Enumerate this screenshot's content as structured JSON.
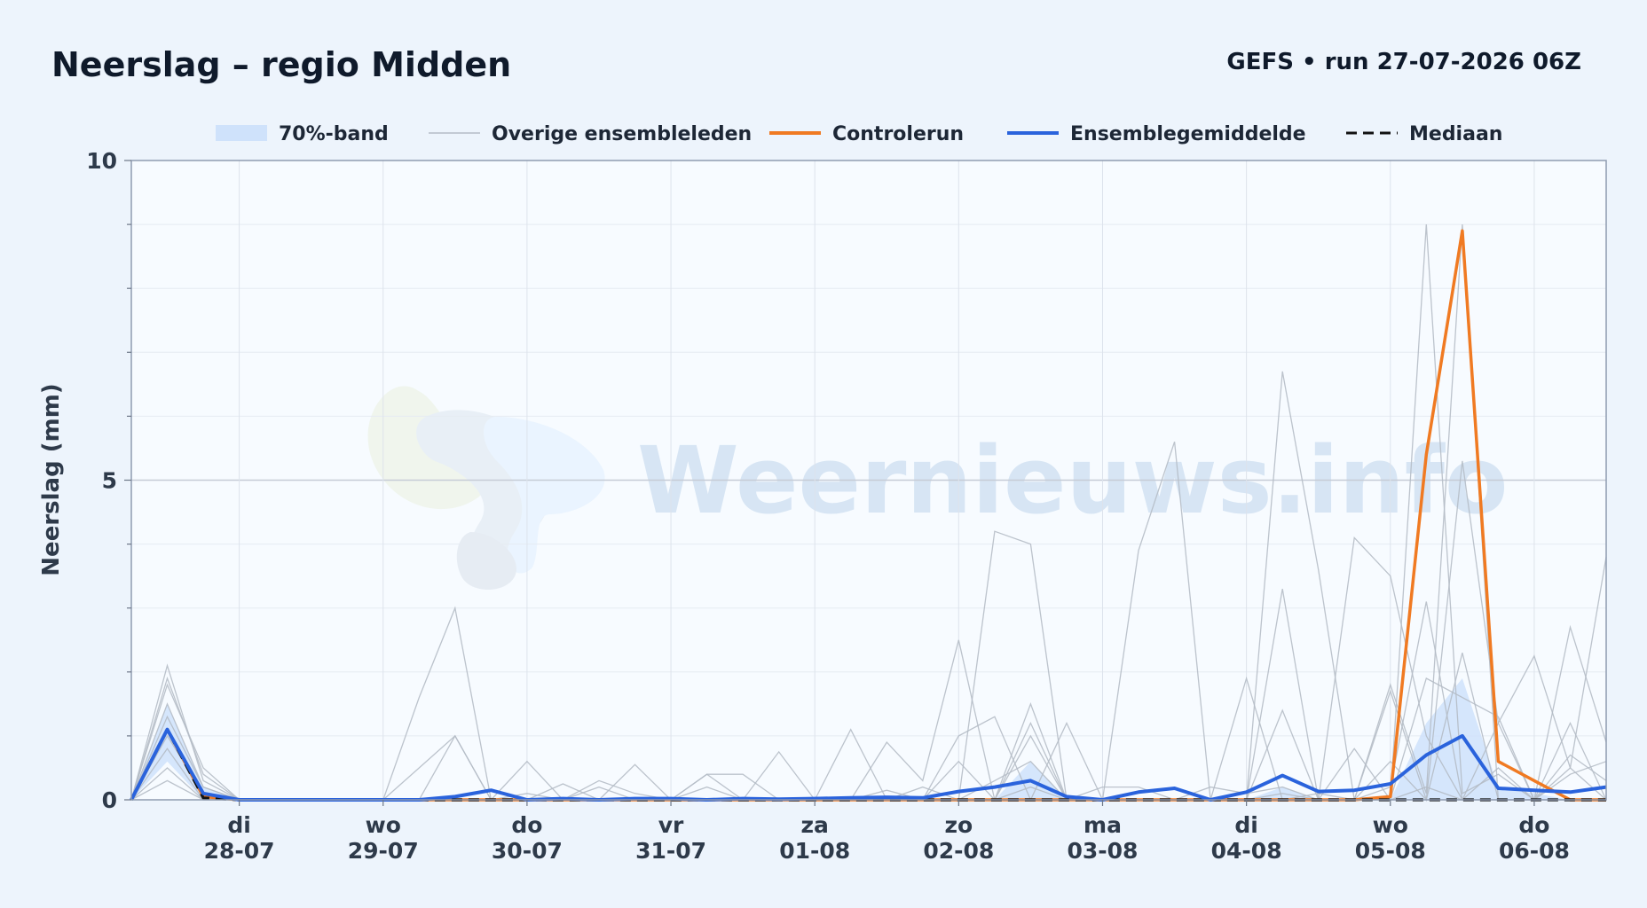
{
  "header": {
    "title": "Neerslag – regio Midden",
    "run_info": "GEFS • run 27-07-2026 06Z"
  },
  "watermark": {
    "text": "Weernieuws.info"
  },
  "legend": {
    "items": [
      {
        "key": "band",
        "label": "70%-band",
        "color": "#cfe2fb"
      },
      {
        "key": "members",
        "label": "Overige ensembleleden",
        "color": "#b5bcc7"
      },
      {
        "key": "control",
        "label": "Controlerun",
        "color": "#f07a22"
      },
      {
        "key": "mean",
        "label": "Ensemblegemiddelde",
        "color": "#2a63dc"
      },
      {
        "key": "median",
        "label": "Mediaan",
        "color": "#111111"
      }
    ]
  },
  "chart_data": {
    "type": "line",
    "ylabel": "Neerslag (mm)",
    "xlabel": "",
    "ylim": [
      0,
      10
    ],
    "yticks": [
      0,
      5,
      10
    ],
    "x_start": "2026-07-27T06:00Z",
    "x_end": "2026-08-06T12:00Z",
    "x_step_hours": 6,
    "x_ticks": [
      {
        "day": "di",
        "date": "28-07",
        "at": "2026-07-28T00:00Z"
      },
      {
        "day": "wo",
        "date": "29-07",
        "at": "2026-07-29T00:00Z"
      },
      {
        "day": "do",
        "date": "30-07",
        "at": "2026-07-30T00:00Z"
      },
      {
        "day": "vr",
        "date": "31-07",
        "at": "2026-07-31T00:00Z"
      },
      {
        "day": "za",
        "date": "01-08",
        "at": "2026-08-01T00:00Z"
      },
      {
        "day": "zo",
        "date": "02-08",
        "at": "2026-08-02T00:00Z"
      },
      {
        "day": "ma",
        "date": "03-08",
        "at": "2026-08-03T00:00Z"
      },
      {
        "day": "di",
        "date": "04-08",
        "at": "2026-08-04T00:00Z"
      },
      {
        "day": "wo",
        "date": "05-08",
        "at": "2026-08-05T00:00Z"
      },
      {
        "day": "do",
        "date": "06-08",
        "at": "2026-08-06T00:00Z"
      }
    ],
    "mean": [
      0,
      1.1,
      0.1,
      0,
      0,
      0,
      0,
      0,
      0,
      0.05,
      0.15,
      0,
      0.02,
      0,
      0.02,
      0.02,
      0,
      0.02,
      0.01,
      0.02,
      0.03,
      0.04,
      0.03,
      0.13,
      0.2,
      0.3,
      0.05,
      0,
      0.12,
      0.18,
      0,
      0.12,
      0.38,
      0.13,
      0.15,
      0.25,
      0.7,
      1.0,
      0.18,
      0.15,
      0.12,
      0.2
    ],
    "control": [
      0,
      1.1,
      0.05,
      0,
      0,
      0,
      0,
      0,
      0,
      0,
      0,
      0,
      0,
      0,
      0,
      0,
      0,
      0,
      0,
      0,
      0,
      0,
      0,
      0,
      0,
      0,
      0,
      0,
      0,
      0,
      0,
      0,
      0,
      0,
      0,
      0.05,
      5.4,
      8.9,
      0.6,
      0.3,
      0,
      0
    ],
    "median": [
      0,
      1.1,
      0.03,
      0,
      0,
      0,
      0,
      0,
      0,
      0,
      0,
      0,
      0,
      0,
      0,
      0,
      0,
      0,
      0,
      0,
      0,
      0,
      0,
      0,
      0,
      0,
      0,
      0,
      0,
      0,
      0,
      0,
      0,
      0,
      0,
      0,
      0,
      0,
      0,
      0,
      0,
      0
    ],
    "band_upper": [
      0,
      1.5,
      0.2,
      0,
      0,
      0,
      0,
      0,
      0,
      0,
      0,
      0,
      0,
      0,
      0,
      0,
      0,
      0,
      0,
      0,
      0,
      0,
      0,
      0,
      0,
      0.6,
      0,
      0,
      0,
      0,
      0,
      0,
      0.2,
      0,
      0,
      0,
      1.2,
      1.9,
      0.2,
      0.1,
      0,
      0
    ],
    "band_lower": [
      0,
      0.6,
      0,
      0,
      0,
      0,
      0,
      0,
      0,
      0,
      0,
      0,
      0,
      0,
      0,
      0,
      0,
      0,
      0,
      0,
      0,
      0,
      0,
      0,
      0,
      0,
      0,
      0,
      0,
      0,
      0,
      0,
      0,
      0,
      0,
      0,
      0,
      0,
      0,
      0,
      0,
      0
    ],
    "members": [
      [
        0,
        1.9,
        0.4,
        0,
        0,
        0,
        0,
        0,
        1.6,
        3.0,
        0,
        0,
        0,
        0,
        0,
        0,
        0,
        0,
        0,
        0,
        0,
        0,
        0,
        0,
        4.2,
        4.0,
        0,
        0,
        3.9,
        5.6,
        0,
        0,
        6.7,
        3.6,
        0,
        0,
        9.0,
        0.1,
        0.4,
        0,
        2.7,
        0.9
      ],
      [
        0,
        2.1,
        0.3,
        0,
        0,
        0,
        0,
        0,
        0,
        1.0,
        0,
        0.6,
        0,
        0,
        0.55,
        0,
        0,
        0,
        0,
        0,
        1.1,
        0,
        0,
        0,
        0,
        1.5,
        0,
        0,
        0,
        0,
        0,
        0,
        3.3,
        0,
        0,
        1.8,
        0.1,
        9.0,
        0,
        0,
        0,
        0
      ],
      [
        0,
        1.8,
        0.5,
        0,
        0,
        0,
        0,
        0,
        0.5,
        1.0,
        0,
        0,
        0.25,
        0,
        0,
        0,
        0.4,
        0,
        0.75,
        0,
        0,
        0.9,
        0.3,
        2.5,
        0,
        1.2,
        0,
        0,
        0,
        0,
        0,
        0,
        0,
        0,
        4.1,
        3.5,
        1.0,
        0,
        1.2,
        2.25,
        0.5,
        3.8
      ],
      [
        0,
        1.5,
        0.2,
        0,
        0,
        0,
        0,
        0,
        0,
        0,
        0,
        0.1,
        0,
        0.3,
        0.1,
        0,
        0.2,
        0,
        0,
        0,
        0,
        0.15,
        0,
        1.0,
        1.3,
        0,
        1.2,
        0,
        0,
        0,
        0,
        1.9,
        0,
        0,
        0,
        0.2,
        3.1,
        0,
        0,
        0,
        0.5,
        0
      ],
      [
        0,
        1.3,
        0.2,
        0,
        0,
        0,
        0,
        0,
        0,
        0,
        0,
        0,
        0,
        0.2,
        0,
        0,
        0.4,
        0.4,
        0,
        0,
        0,
        0,
        0.2,
        0,
        0,
        1.0,
        0,
        0,
        0,
        0,
        0,
        0,
        1.4,
        0,
        0.8,
        0,
        0,
        5.3,
        1.2,
        0,
        1.2,
        0
      ],
      [
        0,
        1.0,
        0.1,
        0,
        0,
        0,
        0,
        0,
        0,
        0,
        0,
        0,
        0,
        0,
        0,
        0,
        0,
        0,
        0,
        0,
        0,
        0,
        0,
        0.6,
        0,
        0,
        0,
        0,
        0,
        0,
        0,
        0,
        0.1,
        0,
        0,
        0,
        1.9,
        1.6,
        1.3,
        0,
        0.7,
        0.3
      ],
      [
        0,
        0.8,
        0,
        0,
        0,
        0,
        0,
        0,
        0,
        0,
        0,
        0,
        0,
        0,
        0,
        0,
        0,
        0,
        0,
        0,
        0,
        0,
        0,
        0,
        0.3,
        0.6,
        0,
        0.2,
        0.2,
        0,
        0.2,
        0.1,
        0.2,
        0,
        0,
        1.7,
        0,
        2.3,
        0,
        0,
        0.4,
        0.6
      ],
      [
        0,
        0.5,
        0,
        0,
        0,
        0,
        0,
        0,
        0,
        0,
        0,
        0,
        0,
        0,
        0,
        0,
        0,
        0,
        0,
        0,
        0,
        0,
        0,
        0,
        0,
        0.2,
        0,
        0,
        0,
        0,
        0,
        0,
        0,
        0.1,
        0,
        0.6,
        0,
        0,
        0.5,
        0,
        0,
        0
      ],
      [
        0,
        0.3,
        0,
        0,
        0,
        0,
        0,
        0,
        0,
        0,
        0,
        0,
        0,
        0,
        0,
        0,
        0,
        0,
        0,
        0,
        0,
        0,
        0,
        0,
        0,
        0,
        0,
        0,
        0,
        0,
        0,
        0,
        0,
        0,
        0,
        0,
        0.2,
        0,
        0,
        0,
        0,
        0
      ]
    ]
  }
}
